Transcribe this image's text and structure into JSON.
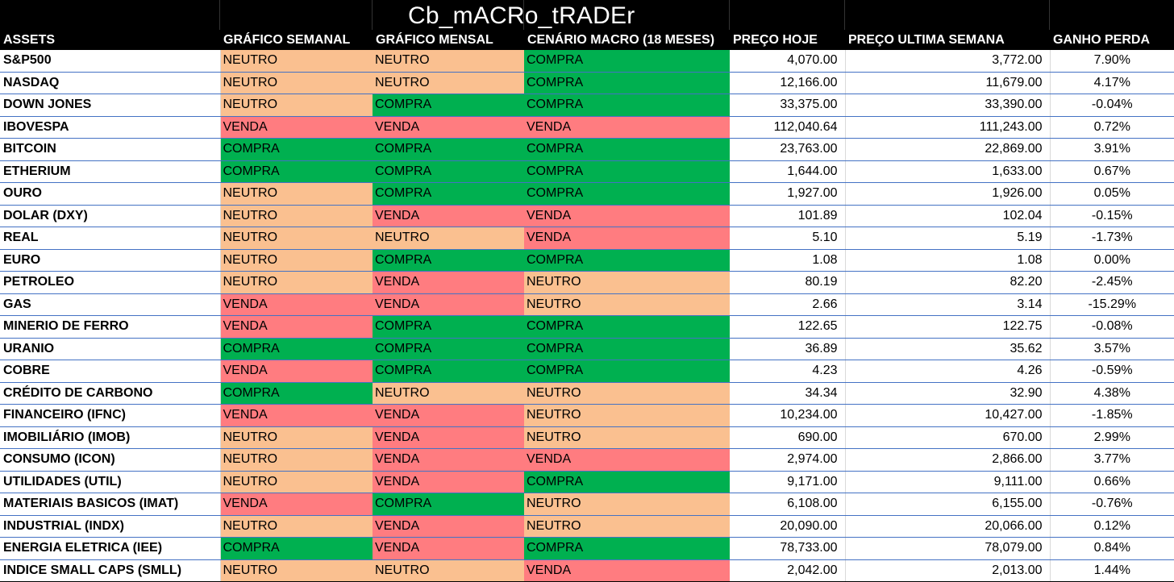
{
  "title": "Cb_mACRo_tRADEr",
  "headers": [
    "ASSETS",
    "GRÁFICO SEMANAL",
    "GRÁFICO MENSAL",
    "CENÁRIO MACRO (18 MESES)",
    "PREÇO HOJE",
    "PREÇO ULTIMA SEMANA",
    "GANHO PERDA"
  ],
  "signal_colors": {
    "NEUTRO": "#fac090",
    "COMPRA": "#00b050",
    "VENDA": "#ff7c80"
  },
  "rows": [
    [
      "S&P500",
      "NEUTRO",
      "NEUTRO",
      "COMPRA",
      "4,070.00",
      "3,772.00",
      "7.90%"
    ],
    [
      "NASDAQ",
      "NEUTRO",
      "NEUTRO",
      "COMPRA",
      "12,166.00",
      "11,679.00",
      "4.17%"
    ],
    [
      "DOWN JONES",
      "NEUTRO",
      "COMPRA",
      "COMPRA",
      "33,375.00",
      "33,390.00",
      "-0.04%"
    ],
    [
      "IBOVESPA",
      "VENDA",
      "VENDA",
      "VENDA",
      "112,040.64",
      "111,243.00",
      "0.72%"
    ],
    [
      "BITCOIN",
      "COMPRA",
      "COMPRA",
      "COMPRA",
      "23,763.00",
      "22,869.00",
      "3.91%"
    ],
    [
      "ETHERIUM",
      "COMPRA",
      "COMPRA",
      "COMPRA",
      "1,644.00",
      "1,633.00",
      "0.67%"
    ],
    [
      "OURO",
      "NEUTRO",
      "COMPRA",
      "COMPRA",
      "1,927.00",
      "1,926.00",
      "0.05%"
    ],
    [
      "DOLAR (DXY)",
      "NEUTRO",
      "VENDA",
      "VENDA",
      "101.89",
      "102.04",
      "-0.15%"
    ],
    [
      "REAL",
      "NEUTRO",
      "NEUTRO",
      "VENDA",
      "5.10",
      "5.19",
      "-1.73%"
    ],
    [
      "EURO",
      "NEUTRO",
      "COMPRA",
      "COMPRA",
      "1.08",
      "1.08",
      "0.00%"
    ],
    [
      "PETROLEO",
      "NEUTRO",
      "VENDA",
      "NEUTRO",
      "80.19",
      "82.20",
      "-2.45%"
    ],
    [
      "GAS",
      "VENDA",
      "VENDA",
      "NEUTRO",
      "2.66",
      "3.14",
      "-15.29%"
    ],
    [
      "MINERIO DE FERRO",
      "VENDA",
      "COMPRA",
      "COMPRA",
      "122.65",
      "122.75",
      "-0.08%"
    ],
    [
      "URANIO",
      "COMPRA",
      "COMPRA",
      "COMPRA",
      "36.89",
      "35.62",
      "3.57%"
    ],
    [
      "COBRE",
      "VENDA",
      "COMPRA",
      "COMPRA",
      "4.23",
      "4.26",
      "-0.59%"
    ],
    [
      "CRÉDITO DE CARBONO",
      "COMPRA",
      "NEUTRO",
      "NEUTRO",
      "34.34",
      "32.90",
      "4.38%"
    ],
    [
      "FINANCEIRO (IFNC)",
      "VENDA",
      "VENDA",
      "NEUTRO",
      "10,234.00",
      "10,427.00",
      "-1.85%"
    ],
    [
      "IMOBILIÁRIO (IMOB)",
      "NEUTRO",
      "VENDA",
      "NEUTRO",
      "690.00",
      "670.00",
      "2.99%"
    ],
    [
      "CONSUMO (ICON)",
      "NEUTRO",
      "VENDA",
      "VENDA",
      "2,974.00",
      "2,866.00",
      "3.77%"
    ],
    [
      "UTILIDADES (UTIL)",
      "NEUTRO",
      "VENDA",
      "COMPRA",
      "9,171.00",
      "9,111.00",
      "0.66%"
    ],
    [
      "MATERIAIS BASICOS (IMAT)",
      "VENDA",
      "COMPRA",
      "NEUTRO",
      "6,108.00",
      "6,155.00",
      "-0.76%"
    ],
    [
      "INDUSTRIAL (INDX)",
      "NEUTRO",
      "VENDA",
      "NEUTRO",
      "20,090.00",
      "20,066.00",
      "0.12%"
    ],
    [
      "ENERGIA ELETRICA (IEE)",
      "COMPRA",
      "VENDA",
      "COMPRA",
      "78,733.00",
      "78,079.00",
      "0.84%"
    ],
    [
      "INDICE SMALL CAPS (SMLL)",
      "NEUTRO",
      "NEUTRO",
      "VENDA",
      "2,042.00",
      "2,013.00",
      "1.44%"
    ]
  ]
}
